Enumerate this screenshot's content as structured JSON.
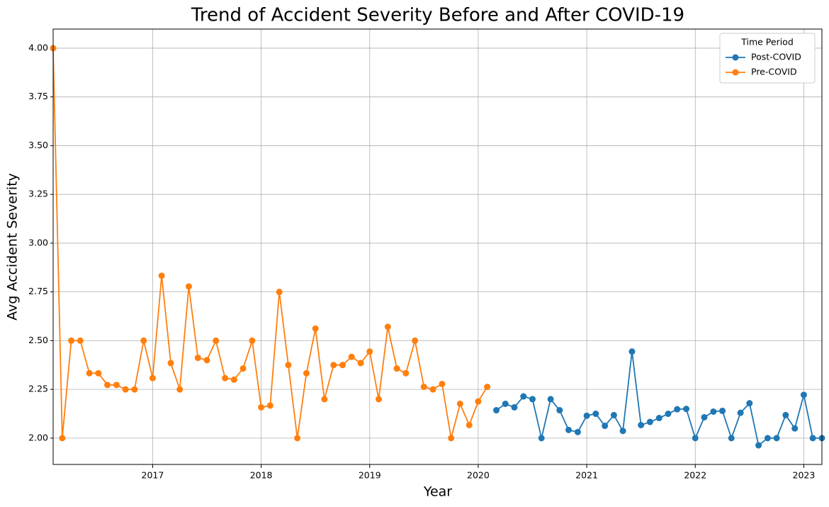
{
  "chart_data": {
    "type": "line",
    "title": "Trend of Accident Severity Before and After COVID-19",
    "x_label": "Year",
    "y_label": "Avg Accident Severity",
    "legend_title": "Time Period",
    "legend_location": "upper right",
    "grid": true,
    "marker": "circle",
    "xlim": [
      2016.083,
      2023.167
    ],
    "xticks": [
      2017,
      2018,
      2019,
      2020,
      2021,
      2022,
      2023
    ],
    "ylim": [
      1.865,
      4.098
    ],
    "yticks": [
      {
        "value": 2,
        "label": "2.00"
      },
      {
        "value": 2.25,
        "label": "2.25"
      },
      {
        "value": 2.5,
        "label": "2.50"
      },
      {
        "value": 2.75,
        "label": "2.75"
      },
      {
        "value": 3,
        "label": "3.00"
      },
      {
        "value": 3.25,
        "label": "3.25"
      },
      {
        "value": 3.5,
        "label": "3.50"
      },
      {
        "value": 3.75,
        "label": "3.75"
      },
      {
        "value": 4,
        "label": "4.00"
      }
    ],
    "series": [
      {
        "name": "Post-COVID",
        "color": "#1f77b4",
        "x": [
          2020.167,
          2020.25,
          2020.333,
          2020.417,
          2020.5,
          2020.583,
          2020.667,
          2020.75,
          2020.833,
          2020.917,
          2021,
          2021.083,
          2021.167,
          2021.25,
          2021.333,
          2021.417,
          2021.5,
          2021.583,
          2021.667,
          2021.75,
          2021.833,
          2021.917,
          2022,
          2022.083,
          2022.167,
          2022.25,
          2022.333,
          2022.417,
          2022.5,
          2022.583,
          2022.667,
          2022.75,
          2022.833,
          2022.917,
          2023,
          2023.083,
          2023.167
        ],
        "values": [
          2.143,
          2.176,
          2.158,
          2.214,
          2.2,
          2.0,
          2.2,
          2.143,
          2.042,
          2.031,
          2.115,
          2.125,
          2.063,
          2.118,
          2.037,
          2.444,
          2.067,
          2.083,
          2.103,
          2.125,
          2.148,
          2.15,
          2.0,
          2.107,
          2.136,
          2.14,
          2.0,
          2.13,
          2.179,
          1.963,
          2.0,
          2.0,
          2.118,
          2.05,
          2.222,
          2.0,
          2.0
        ]
      },
      {
        "name": "Pre-COVID",
        "color": "#ff7f0e",
        "x": [
          2016.083,
          2016.167,
          2016.25,
          2016.333,
          2016.417,
          2016.5,
          2016.583,
          2016.667,
          2016.75,
          2016.833,
          2016.917,
          2017,
          2017.083,
          2017.167,
          2017.25,
          2017.333,
          2017.417,
          2017.5,
          2017.583,
          2017.667,
          2017.75,
          2017.833,
          2017.917,
          2018,
          2018.083,
          2018.167,
          2018.25,
          2018.333,
          2018.417,
          2018.5,
          2018.583,
          2018.667,
          2018.75,
          2018.833,
          2018.917,
          2019,
          2019.083,
          2019.167,
          2019.25,
          2019.333,
          2019.417,
          2019.5,
          2019.583,
          2019.667,
          2019.75,
          2019.833,
          2019.917,
          2020,
          2020.083
        ],
        "values": [
          4.0,
          2.0,
          2.5,
          2.5,
          2.333,
          2.333,
          2.273,
          2.273,
          2.25,
          2.25,
          2.5,
          2.308,
          2.833,
          2.385,
          2.25,
          2.778,
          2.412,
          2.4,
          2.5,
          2.308,
          2.3,
          2.357,
          2.5,
          2.158,
          2.167,
          2.75,
          2.375,
          2.0,
          2.333,
          2.562,
          2.2,
          2.375,
          2.375,
          2.417,
          2.385,
          2.444,
          2.2,
          2.571,
          2.357,
          2.333,
          2.5,
          2.263,
          2.25,
          2.278,
          2.0,
          2.176,
          2.067,
          2.188,
          2.263
        ]
      }
    ]
  }
}
